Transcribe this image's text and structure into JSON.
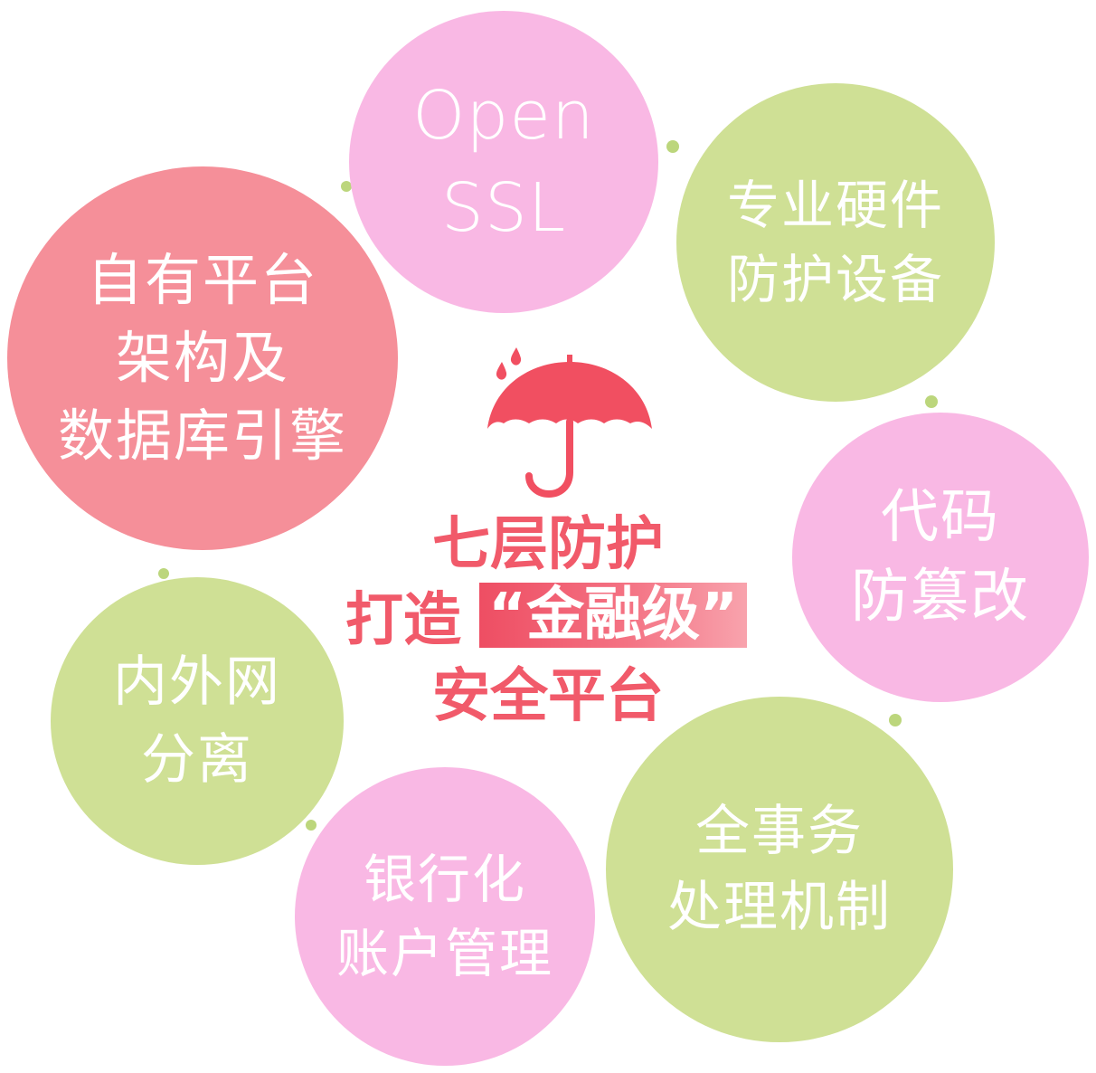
{
  "colors": {
    "pink_bubble": "#f9b8e4",
    "green_bubble": "#cfe095",
    "coral_bubble": "#f58f99",
    "slogan_red": "#f15a6a",
    "umbrella_red": "#f14f61",
    "connector_green": "#bcd67c"
  },
  "center": {
    "icon": "umbrella-icon",
    "line1": "七层防护",
    "line2_prefix": "打造",
    "line2_highlight": "“金融级”",
    "line3": "安全平台"
  },
  "bubbles": {
    "openssl": {
      "text": "Open\nSSL",
      "color": "pink"
    },
    "hardware": {
      "text": "专业硬件\n防护设备",
      "color": "green"
    },
    "platform": {
      "text": "自有平台\n架构及\n数据库引擎",
      "color": "coral"
    },
    "code": {
      "text": "代码\n防篡改",
      "color": "pink"
    },
    "network": {
      "text": "内外网\n分离",
      "color": "green"
    },
    "transaction": {
      "text": "全事务\n处理机制",
      "color": "green"
    },
    "bank": {
      "text": "银行化\n账户管理",
      "color": "pink"
    }
  }
}
